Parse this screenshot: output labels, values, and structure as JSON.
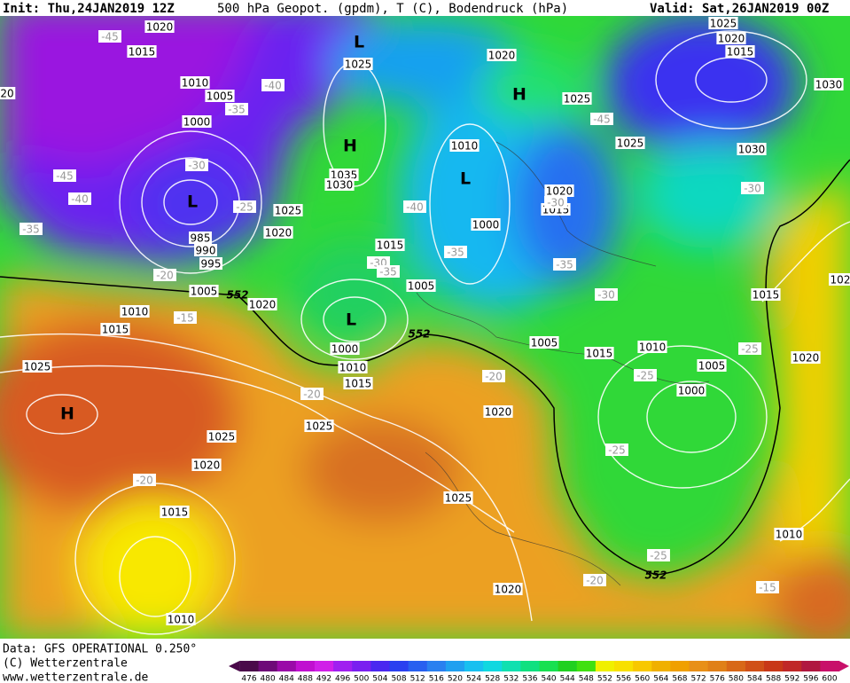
{
  "header": {
    "init": "Init: Thu,24JAN2019 12Z",
    "title": "500 hPa Geopot. (gpdm), T (C), Bodendruck (hPa)",
    "valid": "Valid: Sat,26JAN2019 00Z"
  },
  "map": {
    "isobar_labels": [
      "1020",
      "1015",
      "1010",
      "1005",
      "1000",
      "985",
      "990",
      "995",
      "1005",
      "1010",
      "1015",
      "1025",
      "1020",
      "1025",
      "1020",
      "1025",
      "1035",
      "1030",
      "1015",
      "1005",
      "1000",
      "1010",
      "1015",
      "1025",
      "1025",
      "1020",
      "1015",
      "1010",
      "1020",
      "1025",
      "1010",
      "1000",
      "1020",
      "1015",
      "1025",
      "1030",
      "1025",
      "1020",
      "1015",
      "1030",
      "1015",
      "1020",
      "1005",
      "1015",
      "1010",
      "1005",
      "1000",
      "1020",
      "1025",
      "1020",
      "1010",
      "20",
      "102"
    ],
    "temperature_labels": [
      "-45",
      "-40",
      "-35",
      "-30",
      "-45",
      "-40",
      "-35",
      "-25",
      "-20",
      "-15",
      "-30",
      "-35",
      "-40",
      "-35",
      "-30",
      "-35",
      "-30",
      "-45",
      "-30",
      "-25",
      "-25",
      "-20",
      "-20",
      "-25",
      "-20",
      "-25",
      "-20",
      "-15"
    ],
    "contour_labels": [
      "552",
      "552",
      "552"
    ],
    "pressure_centers": [
      "L",
      "H",
      "L",
      "L",
      "H",
      "L",
      "H"
    ]
  },
  "footer": {
    "data": "Data: GFS OPERATIONAL  0.250°",
    "copyright": "(C) Wetterzentrale",
    "url": "www.wetterzentrale.de"
  },
  "colorbar": {
    "ticks": [
      476,
      480,
      484,
      488,
      492,
      496,
      500,
      504,
      508,
      512,
      516,
      520,
      524,
      528,
      532,
      536,
      540,
      544,
      548,
      552,
      556,
      560,
      564,
      568,
      572,
      576,
      580,
      584,
      588,
      592,
      596,
      600
    ],
    "colors": [
      "#4a0a4a",
      "#6e0a78",
      "#9a0aa8",
      "#c010d0",
      "#d020e8",
      "#a020f0",
      "#7a20f0",
      "#4a28f0",
      "#2a40f0",
      "#2860f0",
      "#2a80f0",
      "#20a0f0",
      "#18c0f0",
      "#10d8e0",
      "#10e0b0",
      "#10e080",
      "#18e050",
      "#20d020",
      "#40e010",
      "#f0f000",
      "#f8e000",
      "#f8c800",
      "#f0b000",
      "#f0a000",
      "#e89018",
      "#e08018",
      "#d86818",
      "#d05018",
      "#c83818",
      "#c02828",
      "#b01840",
      "#c8106a"
    ]
  }
}
